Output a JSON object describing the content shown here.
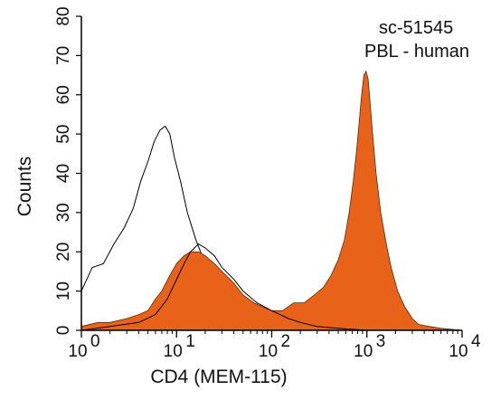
{
  "chart_data": {
    "type": "area",
    "xlabel": "CD4 (MEM-115)",
    "ylabel": "Counts",
    "annotations": [
      "sc-51545",
      "PBL - human"
    ],
    "x_scale": "log",
    "xlim": [
      1,
      10000
    ],
    "ylim": [
      0,
      80
    ],
    "x_ticks": [
      {
        "value": 1,
        "base": "10",
        "exp": "0"
      },
      {
        "value": 10,
        "base": "10",
        "exp": "1"
      },
      {
        "value": 100,
        "base": "10",
        "exp": "2"
      },
      {
        "value": 1000,
        "base": "10",
        "exp": "3"
      },
      {
        "value": 10000,
        "base": "10",
        "exp": "4"
      }
    ],
    "y_ticks": [
      "0",
      "10",
      "20",
      "30",
      "40",
      "50",
      "60",
      "70",
      "80"
    ],
    "grid": false,
    "series": [
      {
        "style": "outline",
        "color": "#000000",
        "x": [
          1.0,
          1.3,
          1.7,
          2.2,
          2.8,
          3.5,
          4.2,
          5.0,
          5.8,
          6.7,
          7.6,
          8.5,
          9.5,
          11,
          13,
          16,
          20,
          25,
          32,
          40,
          55,
          75,
          100,
          150,
          250,
          400,
          700,
          1000,
          2000,
          5000,
          10000
        ],
        "y": [
          10,
          16,
          17,
          22,
          26,
          31,
          38,
          43,
          48,
          51,
          52,
          50,
          44,
          38,
          30,
          23,
          17,
          12,
          9,
          7,
          5,
          4,
          3,
          2,
          1,
          1,
          0.5,
          0.5,
          0,
          0,
          0
        ]
      },
      {
        "style": "filled",
        "color": "#E8621A",
        "x": [
          1.0,
          1.5,
          2.0,
          3.0,
          4.0,
          5.0,
          6.0,
          7.0,
          8.5,
          10,
          12,
          14,
          17,
          20,
          25,
          30,
          40,
          50,
          65,
          80,
          100,
          130,
          170,
          220,
          280,
          350,
          420,
          500,
          580,
          650,
          720,
          780,
          830,
          880,
          930,
          980,
          1030,
          1080,
          1150,
          1250,
          1400,
          1600,
          1800,
          2100,
          2500,
          3000,
          3500,
          4500,
          6000,
          10000
        ],
        "y": [
          1,
          2,
          2,
          3,
          4,
          5,
          8,
          10,
          14,
          17,
          19,
          20,
          20,
          19,
          17,
          15,
          12,
          9,
          7,
          6,
          5,
          5,
          7,
          7,
          9,
          11,
          14,
          18,
          23,
          30,
          38,
          46,
          53,
          60,
          65,
          66,
          64,
          58,
          50,
          40,
          30,
          22,
          16,
          10,
          6,
          3,
          1.5,
          1,
          0.5,
          0
        ]
      },
      {
        "style": "outline",
        "color": "#000000",
        "x": [
          1.0,
          2.0,
          4.0,
          6.0,
          8.0,
          10,
          12,
          14,
          17,
          20,
          25,
          30,
          40,
          50,
          70,
          100,
          150,
          200,
          300,
          500,
          1000,
          10000
        ],
        "y": [
          0,
          1,
          2,
          4,
          8,
          13,
          17,
          20,
          22,
          21,
          19,
          16,
          13,
          10,
          7,
          5,
          3,
          2,
          1,
          0.5,
          0,
          0
        ]
      }
    ]
  }
}
